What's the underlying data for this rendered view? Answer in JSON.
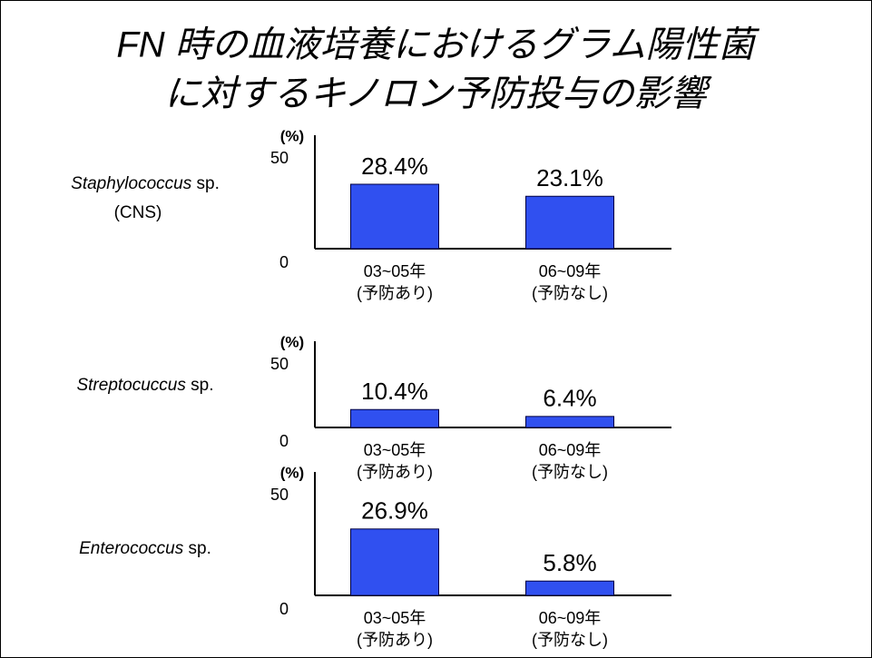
{
  "title": [
    "FN 時の血液培養におけるグラム陽性菌",
    "に対するキノロン予防投与の影響"
  ],
  "chart_data": [
    {
      "type": "bar",
      "organism": {
        "genus": "Staphylococcus",
        "species": "sp.",
        "note": "(CNS)"
      },
      "ylabel": "(%)",
      "ylim": [
        0,
        50
      ],
      "yticks": [
        0,
        50
      ],
      "color": "#3050f0",
      "categories": [
        [
          "03~05年",
          "(予防あり)"
        ],
        [
          "06~09年",
          "(予防なし)"
        ]
      ],
      "values": [
        28.4,
        23.1
      ],
      "value_labels": [
        "28.4%",
        "23.1%"
      ]
    },
    {
      "type": "bar",
      "organism": {
        "genus": "Streptocuccus",
        "species": "sp."
      },
      "ylabel": "(%)",
      "ylim": [
        0,
        50
      ],
      "yticks": [
        0,
        50
      ],
      "color": "#3050f0",
      "categories": [
        [
          "03~05年",
          "(予防あり)"
        ],
        [
          "06~09年",
          "(予防なし)"
        ]
      ],
      "values": [
        10.4,
        6.4
      ],
      "value_labels": [
        "10.4%",
        "6.4%"
      ]
    },
    {
      "type": "bar",
      "organism": {
        "genus": "Enterococcus",
        "species": "sp."
      },
      "ylabel": "(%)",
      "ylim": [
        0,
        50
      ],
      "yticks": [
        0,
        50
      ],
      "color": "#3050f0",
      "categories": [
        [
          "03~05年",
          "(予防あり)"
        ],
        [
          "06~09年",
          "(予防なし)"
        ]
      ],
      "values": [
        26.9,
        5.8
      ],
      "value_labels": [
        "26.9%",
        "5.8%"
      ]
    }
  ]
}
